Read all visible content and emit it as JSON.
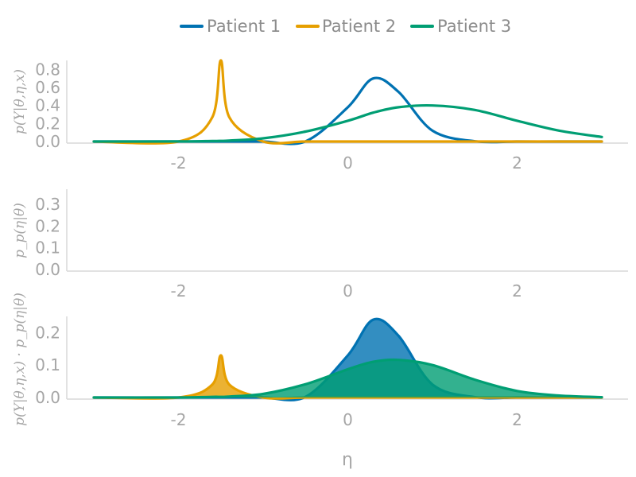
{
  "legend": [
    {
      "name": "Patient 1",
      "color": "#0072b2"
    },
    {
      "name": "Patient 2",
      "color": "#e69f00"
    },
    {
      "name": "Patient 3",
      "color": "#009e73"
    }
  ],
  "chart_data": [
    {
      "type": "line",
      "ylabel": "p(Y|θ,η,x)",
      "xlabel": "",
      "xlim": [
        -3,
        3
      ],
      "ylim": [
        0,
        0.9
      ],
      "xticks": [
        "-2",
        "0",
        "2"
      ],
      "yticks": [
        "0.0",
        "0.2",
        "0.4",
        "0.6",
        "0.8"
      ],
      "grid": false,
      "legend_position": "top",
      "x": [
        -3.0,
        -2.0,
        -1.6,
        -1.5,
        -1.4,
        -1.0,
        -0.5,
        0.0,
        0.3,
        0.6,
        1.0,
        1.5,
        2.0,
        2.5,
        3.0
      ],
      "series": [
        {
          "name": "Patient 1",
          "color": "#0072b2",
          "values": [
            0,
            0,
            0,
            0,
            0,
            0,
            0.002,
            0.38,
            0.7,
            0.55,
            0.12,
            0.003,
            0,
            0,
            0
          ]
        },
        {
          "name": "Patient 2",
          "color": "#e69f00",
          "values": [
            0,
            0,
            0.27,
            0.9,
            0.27,
            0,
            0,
            0,
            0,
            0,
            0,
            0,
            0,
            0,
            0
          ]
        },
        {
          "name": "Patient 3",
          "color": "#009e73",
          "values": [
            0,
            0.001,
            0.005,
            0.007,
            0.01,
            0.035,
            0.11,
            0.23,
            0.32,
            0.38,
            0.4,
            0.35,
            0.23,
            0.12,
            0.05
          ]
        }
      ]
    },
    {
      "type": "line",
      "ylabel": "p_p(η|θ)",
      "xlabel": "",
      "xlim": [
        -3,
        3
      ],
      "ylim": [
        0,
        0.37
      ],
      "xticks": [
        "-2",
        "0",
        "2"
      ],
      "yticks": [
        "0.0",
        "0.1",
        "0.2",
        "0.3"
      ],
      "grid": false,
      "series": []
    },
    {
      "type": "area",
      "ylabel": "p(Y|θ,η,x) · p_p(η|θ)",
      "xlabel": "η",
      "xlim": [
        -3,
        3
      ],
      "ylim": [
        0,
        0.25
      ],
      "xticks": [
        "-2",
        "0",
        "2"
      ],
      "yticks": [
        "0.0",
        "0.1",
        "0.2"
      ],
      "grid": false,
      "x": [
        -3.0,
        -2.0,
        -1.6,
        -1.5,
        -1.4,
        -1.0,
        -0.5,
        0.0,
        0.3,
        0.6,
        1.0,
        1.5,
        2.0,
        2.5,
        3.0
      ],
      "series": [
        {
          "name": "Patient 1",
          "color": "#0072b2",
          "values": [
            0,
            0,
            0,
            0,
            0,
            0,
            0.002,
            0.13,
            0.24,
            0.19,
            0.04,
            0.001,
            0,
            0,
            0
          ]
        },
        {
          "name": "Patient 2",
          "color": "#e69f00",
          "values": [
            0,
            0,
            0.04,
            0.13,
            0.04,
            0,
            0,
            0,
            0,
            0,
            0,
            0,
            0,
            0,
            0
          ]
        },
        {
          "name": "Patient 3",
          "color": "#009e73",
          "values": [
            0,
            0,
            0.002,
            0.002,
            0.003,
            0.011,
            0.041,
            0.087,
            0.11,
            0.116,
            0.1,
            0.055,
            0.02,
            0.006,
            0.001
          ]
        }
      ]
    }
  ]
}
